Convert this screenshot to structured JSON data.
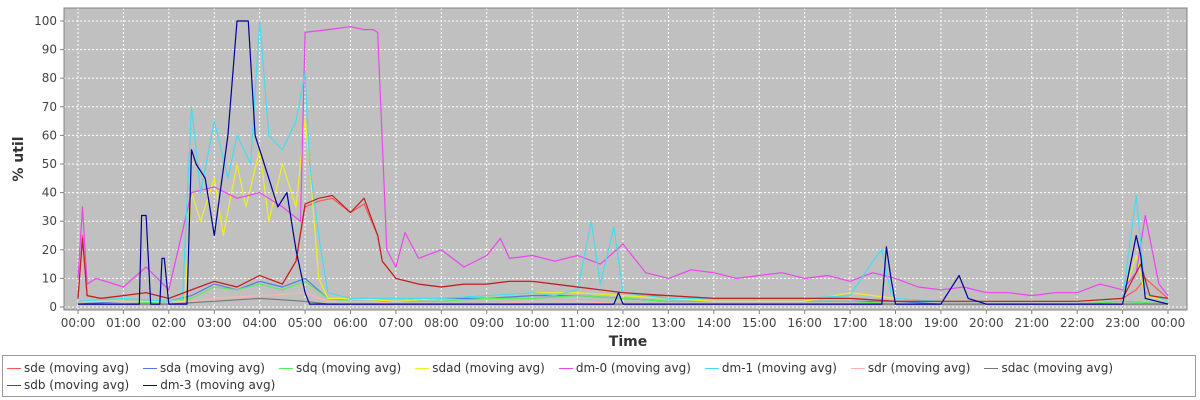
{
  "chart_data": {
    "type": "line",
    "title": "",
    "xlabel": "Time",
    "ylabel": "% util",
    "xlim": [
      0,
      24
    ],
    "ylim": [
      0,
      102
    ],
    "grid": true,
    "legend_placement": "bottom",
    "x_tick_labels": [
      "00:00",
      "01:00",
      "02:00",
      "03:00",
      "04:00",
      "05:00",
      "06:00",
      "07:00",
      "08:00",
      "09:00",
      "10:00",
      "11:00",
      "12:00",
      "13:00",
      "14:00",
      "15:00",
      "16:00",
      "17:00",
      "18:00",
      "19:00",
      "20:00",
      "21:00",
      "22:00",
      "23:00",
      "00:00"
    ],
    "y_ticks": [
      0,
      10,
      20,
      30,
      40,
      50,
      60,
      70,
      80,
      90,
      100
    ],
    "series": [
      {
        "name": "sde (moving avg)",
        "color": "#ff5555",
        "x": [
          0,
          0.1,
          0.2,
          0.5,
          1,
          1.5,
          2,
          2.5,
          3,
          3.5,
          4,
          4.5,
          4.8,
          5,
          5.3,
          5.6,
          6,
          6.3,
          6.6,
          6.7,
          7,
          7.5,
          8,
          8.5,
          9,
          9.5,
          10,
          10.5,
          11,
          11.5,
          12,
          12.5,
          13,
          14,
          15,
          16,
          17,
          18,
          19,
          20,
          21,
          22,
          23,
          23.3,
          23.5,
          24
        ],
        "y": [
          3,
          25,
          4,
          3,
          4,
          5,
          3,
          6,
          9,
          7,
          11,
          8,
          16,
          35,
          37,
          38,
          33,
          36,
          25,
          16,
          10,
          8,
          7,
          8,
          8,
          9,
          9,
          8,
          7,
          6,
          5,
          4,
          4,
          3,
          3,
          3,
          3,
          2,
          2,
          2,
          2,
          2,
          3,
          6,
          10,
          3
        ]
      },
      {
        "name": "sda (moving avg)",
        "color": "#5577ee",
        "x": [
          0,
          1,
          2,
          2.5,
          3,
          3.5,
          4,
          4.5,
          5,
          5.5,
          6,
          6.5,
          7,
          8,
          9,
          10,
          11,
          12,
          13,
          14,
          15,
          16,
          17,
          18,
          19,
          20,
          21,
          22,
          23,
          24
        ],
        "y": [
          1,
          2,
          2,
          4,
          8,
          6,
          9,
          7,
          10,
          3,
          2,
          2,
          2,
          3,
          3,
          4,
          4,
          3,
          2,
          2,
          2,
          2,
          2,
          2,
          1,
          1,
          1,
          1,
          2,
          1
        ]
      },
      {
        "name": "sdq (moving avg)",
        "color": "#55ee55",
        "x": [
          0,
          1,
          2,
          2.5,
          3,
          3.5,
          4,
          4.5,
          5,
          5.5,
          6,
          6.5,
          7,
          8,
          9,
          10,
          11,
          12,
          13,
          14,
          15,
          16,
          17,
          18,
          19,
          20,
          21,
          22,
          23,
          24
        ],
        "y": [
          1,
          1,
          2,
          3,
          7,
          6,
          8,
          6,
          9,
          3,
          2,
          2,
          2,
          2,
          3,
          3,
          4,
          3,
          2,
          2,
          2,
          2,
          2,
          1,
          1,
          1,
          1,
          1,
          2,
          1
        ]
      },
      {
        "name": "sdad (moving avg)",
        "color": "#eeee22",
        "x": [
          0,
          1,
          2,
          2.35,
          2.5,
          2.7,
          3,
          3.2,
          3.5,
          3.7,
          4,
          4.2,
          4.5,
          4.8,
          5,
          5.1,
          5.3,
          5.5,
          6,
          7,
          8,
          9,
          10,
          11,
          12,
          13,
          14,
          15,
          16,
          17,
          18,
          19,
          20,
          21,
          22,
          23,
          23.3,
          23.5,
          24
        ],
        "y": [
          2,
          2,
          2,
          2,
          40,
          30,
          45,
          25,
          50,
          35,
          55,
          30,
          50,
          35,
          66,
          50,
          10,
          3,
          3,
          2,
          3,
          4,
          5,
          5,
          4,
          3,
          2,
          2,
          2,
          5,
          3,
          2,
          2,
          2,
          2,
          3,
          18,
          4,
          2
        ]
      },
      {
        "name": "dm-0 (moving avg)",
        "color": "#ee44ee",
        "x": [
          0,
          0.1,
          0.2,
          0.4,
          1,
          1.5,
          2,
          2.5,
          3,
          3.5,
          4,
          4.5,
          4.9,
          5,
          5.5,
          6,
          6.3,
          6.5,
          6.6,
          6.8,
          7,
          7.2,
          7.5,
          8,
          8.5,
          9,
          9.3,
          9.5,
          10,
          10.5,
          11,
          11.5,
          12,
          12.5,
          13,
          13.5,
          14,
          14.5,
          15,
          15.5,
          16,
          16.5,
          17,
          17.5,
          18,
          18.5,
          19,
          19.5,
          20,
          20.5,
          21,
          21.5,
          22,
          22.5,
          23,
          23.3,
          23.5,
          23.8,
          24
        ],
        "y": [
          10,
          35,
          8,
          10,
          7,
          14,
          6,
          40,
          42,
          38,
          40,
          35,
          30,
          96,
          97,
          98,
          97,
          97,
          96,
          20,
          14,
          26,
          17,
          20,
          14,
          18,
          24,
          17,
          18,
          16,
          18,
          15,
          22,
          12,
          10,
          13,
          12,
          10,
          11,
          12,
          10,
          11,
          9,
          12,
          10,
          7,
          6,
          7,
          5,
          5,
          4,
          5,
          5,
          8,
          6,
          12,
          32,
          8,
          4
        ]
      },
      {
        "name": "dm-1 (moving avg)",
        "color": "#44ddee",
        "x": [
          0,
          1,
          2,
          2.3,
          2.5,
          2.7,
          3,
          3.3,
          3.5,
          3.8,
          4,
          4.2,
          4.5,
          4.8,
          5,
          5.1,
          5.3,
          5.5,
          6,
          6.5,
          7,
          8,
          9,
          10,
          10.5,
          11,
          11.3,
          11.5,
          11.8,
          12,
          12.5,
          13,
          14,
          15,
          16,
          17,
          17.5,
          17.7,
          17.9,
          18,
          19,
          20,
          21,
          22,
          23,
          23.3,
          23.5,
          24
        ],
        "y": [
          2,
          3,
          2,
          3,
          70,
          40,
          65,
          45,
          60,
          50,
          100,
          60,
          55,
          65,
          82,
          50,
          25,
          5,
          3,
          3,
          3,
          3,
          4,
          5,
          4,
          6,
          30,
          8,
          28,
          5,
          4,
          3,
          3,
          3,
          3,
          4,
          16,
          20,
          5,
          3,
          2,
          2,
          2,
          2,
          3,
          39,
          5,
          2
        ]
      },
      {
        "name": "sdr (moving avg)",
        "color": "#ffb2b2",
        "x": [
          0,
          2,
          3,
          4,
          5,
          5.5,
          6,
          6.5,
          7,
          8,
          9,
          10,
          11,
          12,
          13,
          14,
          15,
          16,
          17,
          18,
          19,
          20,
          21,
          22,
          23,
          24
        ],
        "y": [
          1,
          1,
          3,
          4,
          5,
          2,
          2,
          2,
          1,
          1,
          1,
          2,
          2,
          1,
          1,
          1,
          1,
          1,
          1,
          1,
          1,
          1,
          1,
          1,
          1,
          1
        ]
      },
      {
        "name": "sdac (moving avg)",
        "color": "#777777",
        "x": [
          0,
          1,
          2,
          3,
          4,
          5,
          5.5,
          6,
          7,
          8,
          9,
          10,
          11,
          12,
          13,
          14,
          15,
          16,
          17,
          18,
          19,
          20,
          21,
          22,
          23,
          24
        ],
        "y": [
          1,
          1,
          1,
          2,
          3,
          2,
          1,
          1,
          1,
          1,
          1,
          1,
          1,
          1,
          1,
          1,
          1,
          1,
          1,
          1,
          1,
          1,
          1,
          1,
          1,
          1
        ]
      },
      {
        "name": "sdb (moving avg)",
        "color": "#bb2222",
        "x": [
          0,
          0.1,
          0.2,
          0.5,
          1,
          1.5,
          2,
          2.5,
          3,
          3.5,
          4,
          4.5,
          4.8,
          5,
          5.3,
          5.6,
          6,
          6.3,
          6.6,
          6.7,
          7,
          7.5,
          8,
          8.5,
          9,
          9.5,
          10,
          10.5,
          11,
          11.5,
          12,
          13,
          14,
          15,
          16,
          17,
          18,
          19,
          20,
          21,
          22,
          23,
          23.4,
          23.6,
          24
        ],
        "y": [
          3,
          24,
          4,
          3,
          4,
          5,
          3,
          6,
          9,
          7,
          11,
          8,
          16,
          36,
          38,
          39,
          33,
          38,
          25,
          16,
          10,
          8,
          7,
          8,
          8,
          9,
          9,
          8,
          7,
          6,
          5,
          4,
          3,
          3,
          3,
          3,
          2,
          2,
          2,
          2,
          2,
          3,
          15,
          4,
          3
        ]
      },
      {
        "name": "dm-3 (moving avg)",
        "color": "#000099",
        "x": [
          0,
          1,
          1.35,
          1.4,
          1.5,
          1.6,
          1.8,
          1.85,
          1.9,
          2,
          2.2,
          2.4,
          2.5,
          2.6,
          2.8,
          3,
          3.3,
          3.5,
          3.55,
          3.7,
          3.75,
          3.9,
          4,
          4.2,
          4.4,
          4.6,
          4.8,
          5,
          5.1,
          5.2,
          5.5,
          6,
          7,
          8,
          9,
          10,
          11,
          11.8,
          11.9,
          12,
          13,
          14,
          15,
          16,
          17,
          17.7,
          17.8,
          17.9,
          18,
          19,
          19.4,
          19.6,
          20,
          21,
          22,
          23,
          23.3,
          23.4,
          23.5,
          24
        ],
        "y": [
          1,
          1,
          1,
          32,
          32,
          1,
          1,
          17,
          17,
          1,
          1,
          1,
          55,
          50,
          45,
          25,
          60,
          100,
          100,
          100,
          100,
          60,
          55,
          45,
          35,
          40,
          20,
          5,
          1,
          1,
          1,
          1,
          1,
          1,
          1,
          1,
          1,
          1,
          5,
          1,
          1,
          1,
          1,
          1,
          1,
          1,
          21,
          10,
          1,
          1,
          11,
          3,
          1,
          1,
          1,
          1,
          25,
          18,
          3,
          1
        ]
      }
    ]
  }
}
